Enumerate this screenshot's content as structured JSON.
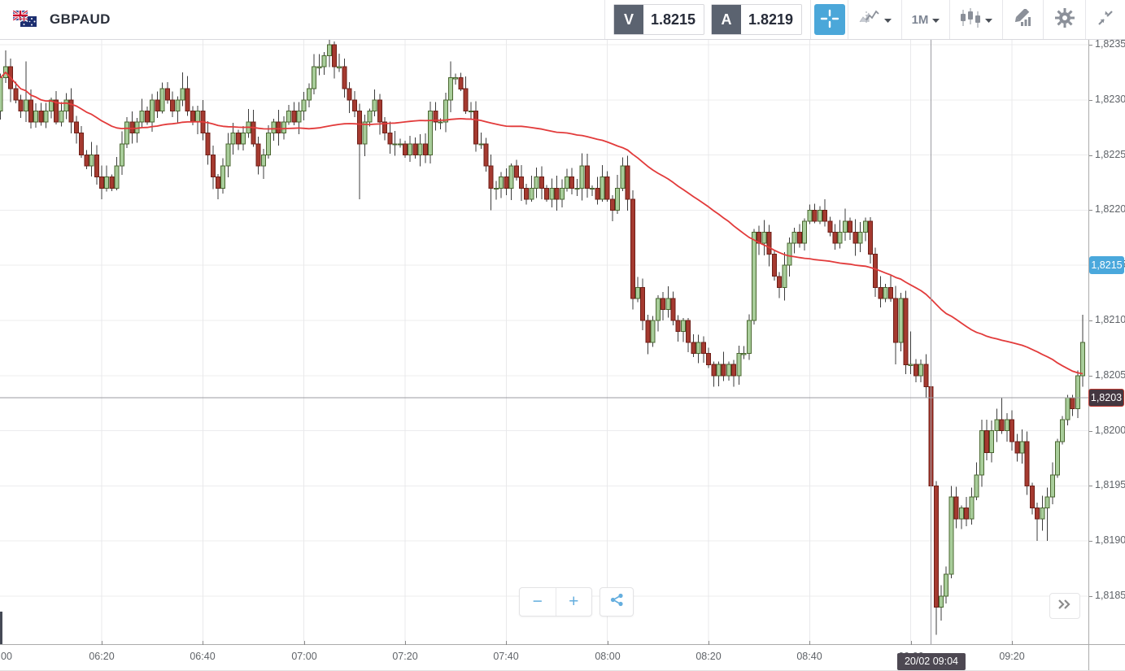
{
  "header": {
    "symbol": "GBPAUD",
    "sell_button": {
      "label": "V",
      "value": "1.8215"
    },
    "buy_button": {
      "label": "A",
      "value": "1.8219"
    },
    "timeframe_label": "1M"
  },
  "bottom_controls": {
    "zoom_out": "−",
    "zoom_in": "+"
  },
  "chart_data": {
    "type": "candlestick",
    "symbol": "GBPAUD",
    "timeframe": "1M",
    "start_time": "06:00",
    "minutes_per_candle": 1,
    "first_open": 1.8229,
    "closes": [
      1.8232,
      1.8233,
      1.8231,
      1.823,
      1.8229,
      1.823,
      1.8228,
      1.8229,
      1.8228,
      1.8229,
      1.823,
      1.8228,
      1.8229,
      1.823,
      1.8228,
      1.8227,
      1.8225,
      1.8224,
      1.8225,
      1.8223,
      1.8222,
      1.8223,
      1.8222,
      1.8224,
      1.8226,
      1.8228,
      1.8227,
      1.8228,
      1.8229,
      1.8228,
      1.823,
      1.8229,
      1.8231,
      1.823,
      1.8229,
      1.823,
      1.8231,
      1.8229,
      1.8228,
      1.8229,
      1.8227,
      1.8225,
      1.8223,
      1.8222,
      1.8224,
      1.8226,
      1.8227,
      1.8226,
      1.8227,
      1.8228,
      1.8226,
      1.8224,
      1.8225,
      1.8227,
      1.8228,
      1.8227,
      1.8228,
      1.8229,
      1.8228,
      1.8229,
      1.823,
      1.8231,
      1.8233,
      1.8233,
      1.8234,
      1.8235,
      1.8233,
      1.8233,
      1.8231,
      1.823,
      1.8229,
      1.8226,
      1.8228,
      1.8229,
      1.823,
      1.8228,
      1.8227,
      1.8226,
      1.8226,
      1.8226,
      1.8225,
      1.8226,
      1.8225,
      1.8226,
      1.8225,
      1.8229,
      1.8228,
      1.8228,
      1.823,
      1.8232,
      1.8232,
      1.8231,
      1.8229,
      1.8229,
      1.8226,
      1.8226,
      1.8224,
      1.8222,
      1.8222,
      1.8223,
      1.8222,
      1.8224,
      1.8223,
      1.8222,
      1.8221,
      1.8222,
      1.8223,
      1.8222,
      1.8221,
      1.8222,
      1.8221,
      1.8222,
      1.8223,
      1.8222,
      1.8222,
      1.8224,
      1.8222,
      1.8222,
      1.8221,
      1.8223,
      1.8221,
      1.822,
      1.8222,
      1.8224,
      1.8221,
      1.8212,
      1.8213,
      1.821,
      1.8208,
      1.821,
      1.8212,
      1.8211,
      1.8212,
      1.821,
      1.8209,
      1.821,
      1.8208,
      1.8207,
      1.8208,
      1.8207,
      1.8206,
      1.8205,
      1.8206,
      1.8205,
      1.8206,
      1.8205,
      1.8207,
      1.8207,
      1.821,
      1.8218,
      1.8217,
      1.8218,
      1.8216,
      1.8214,
      1.8213,
      1.8215,
      1.8217,
      1.8218,
      1.8217,
      1.8219,
      1.822,
      1.8219,
      1.822,
      1.8219,
      1.8218,
      1.8217,
      1.8218,
      1.8219,
      1.8218,
      1.8217,
      1.8218,
      1.8219,
      1.8216,
      1.8213,
      1.8212,
      1.8213,
      1.8212,
      1.8208,
      1.8212,
      1.8206,
      1.8206,
      1.8205,
      1.8206,
      1.8204,
      1.8195,
      1.8184,
      1.8185,
      1.8187,
      1.8194,
      1.8192,
      1.8193,
      1.8192,
      1.8194,
      1.8196,
      1.82,
      1.8198,
      1.82,
      1.8201,
      1.82,
      1.8201,
      1.8199,
      1.8198,
      1.8199,
      1.8195,
      1.8193,
      1.8192,
      1.8193,
      1.8194,
      1.8196,
      1.8199,
      1.8201,
      1.8203,
      1.8202,
      1.8205,
      1.8208
    ],
    "wick_overrides": {
      "1": [
        1.82345,
        null
      ],
      "5": [
        1.82335,
        null
      ],
      "20": [
        null,
        1.8221
      ],
      "36": [
        1.82325,
        null
      ],
      "43": [
        null,
        1.8221
      ],
      "65": [
        1.82365,
        null
      ],
      "71": [
        null,
        1.8221
      ],
      "89": [
        1.82335,
        null
      ],
      "97": [
        null,
        1.822
      ],
      "121": [
        null,
        1.8219
      ],
      "125": [
        null,
        1.8211
      ],
      "141": [
        null,
        1.8204
      ],
      "145": [
        null,
        1.8204
      ],
      "160": [
        1.82205,
        null
      ],
      "177": [
        null,
        1.8206
      ],
      "180": [
        1.8209,
        null
      ],
      "184": [
        null,
        1.8194
      ],
      "185": [
        null,
        1.81815
      ],
      "188": [
        1.8195,
        null
      ],
      "194": [
        1.8201,
        null
      ],
      "198": [
        1.8203,
        null
      ],
      "205": [
        null,
        1.819
      ],
      "207": [
        null,
        1.819
      ],
      "214": [
        1.82105,
        null
      ]
    },
    "moving_average": {
      "type": "SMA",
      "period": 60,
      "color": "#e23b3b"
    },
    "candle_up_color": "#a8cd9a",
    "candle_down_color": "#a53a30",
    "y_axis": {
      "ticks": [
        {
          "label": "1,8235",
          "price": 1.8235
        },
        {
          "label": "1,8230",
          "price": 1.823
        },
        {
          "label": "1,8225",
          "price": 1.8225
        },
        {
          "label": "1,8220",
          "price": 1.822
        },
        {
          "label": "1,8215",
          "price": 1.8215
        },
        {
          "label": "1,8210",
          "price": 1.821
        },
        {
          "label": "1,8205",
          "price": 1.8205
        },
        {
          "label": "1,8200",
          "price": 1.82
        },
        {
          "label": "1,8195",
          "price": 1.8195
        },
        {
          "label": "1,8190",
          "price": 1.819
        },
        {
          "label": "1,8185",
          "price": 1.8185
        }
      ]
    },
    "x_axis": {
      "partial_first_label": {
        "label": "00",
        "minute": 0
      },
      "ticks": [
        {
          "label": "06:20",
          "minute": 20
        },
        {
          "label": "06:40",
          "minute": 40
        },
        {
          "label": "07:00",
          "minute": 60
        },
        {
          "label": "07:20",
          "minute": 80
        },
        {
          "label": "07:40",
          "minute": 100
        },
        {
          "label": "08:00",
          "minute": 120
        },
        {
          "label": "08:20",
          "minute": 140
        },
        {
          "label": "08:40",
          "minute": 160
        },
        {
          "label": "09:00",
          "minute": 180
        },
        {
          "label": "09:20",
          "minute": 200
        }
      ]
    },
    "crosshair": {
      "minute": 184,
      "price": 1.8203,
      "time_label": "20/02 09:04",
      "price_label": "1,8203"
    },
    "current_price": {
      "price": 1.8215,
      "label": "1,8215",
      "color": "#4aa8dc"
    }
  }
}
